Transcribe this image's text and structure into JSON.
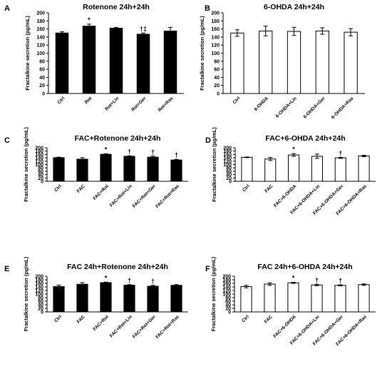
{
  "chart_data": [
    {
      "letter": "A",
      "title": "Rotenone 24h+24h",
      "type": "bar",
      "ylabel": "Fractalkine secretion (pg/mL)",
      "ylim": [
        0,
        200
      ],
      "yticks": [
        "0",
        "20",
        "40",
        "60",
        "80",
        "100",
        "120",
        "140",
        "160",
        "180",
        "200"
      ],
      "fill": "#000000",
      "categories": [
        "Ctrl",
        "Rot",
        "Rot+Lin",
        "Rot+Ger",
        "Rot+Ras"
      ],
      "values": [
        150,
        167,
        162,
        147,
        155
      ],
      "errors": [
        3,
        5,
        2,
        3,
        9
      ],
      "annotations": [
        "",
        "*",
        "",
        "†‡",
        ""
      ]
    },
    {
      "letter": "B",
      "title": "6-OHDA 24h+24h",
      "type": "bar",
      "ylabel": "Fractalkine secretion (pg/mL)",
      "ylim": [
        0,
        200
      ],
      "yticks": [
        "0",
        "20",
        "40",
        "60",
        "80",
        "100",
        "120",
        "140",
        "160",
        "180",
        "200"
      ],
      "fill": "#ffffff",
      "categories": [
        "Ctrl",
        "6-OHDA",
        "6-OHDA+Lin",
        "6-OHDA+Ger",
        "6-OHDA+Ras"
      ],
      "values": [
        150,
        155,
        154,
        155,
        152
      ],
      "errors": [
        8,
        12,
        10,
        8,
        9
      ],
      "annotations": [
        "",
        "",
        "",
        "",
        ""
      ]
    },
    {
      "letter": "C",
      "title": "FAC+Rotenone 24h+24h",
      "type": "bar",
      "ylabel": "Fractalkine secretion (pg/mL)",
      "ylim": [
        0,
        200
      ],
      "yticks": [
        "0",
        "20",
        "40",
        "60",
        "80",
        "100",
        "120",
        "140",
        "160",
        "180",
        "200"
      ],
      "fill": "#000000",
      "categories": [
        "Ctrl",
        "FAC",
        "FAC+Rot",
        "FAC+Rot+Lin",
        "FAC+Rot+Ger",
        "FAC+Rot+Ras"
      ],
      "values": [
        141,
        132,
        161,
        149,
        144,
        127
      ],
      "errors": [
        3,
        9,
        3,
        3,
        6,
        4
      ],
      "annotations": [
        "",
        "",
        "*",
        "†",
        "†",
        "†"
      ]
    },
    {
      "letter": "D",
      "title": "FAC+6-OHDA 24h+24h",
      "type": "bar",
      "ylabel": "Fractalkine secretion (pg/mL)",
      "ylim": [
        0,
        200
      ],
      "yticks": [
        "0",
        "20",
        "40",
        "60",
        "80",
        "100",
        "120",
        "140",
        "160",
        "180",
        "200"
      ],
      "fill": "#ffffff",
      "categories": [
        "Ctrl",
        "FAC",
        "FAC+6-OHDA",
        "FAC+6-OHDA+Lin",
        "FAC+6-OHDA+Ger",
        "FAC+6-OHDA+Ras"
      ],
      "values": [
        143,
        133,
        157,
        149,
        140,
        151
      ],
      "errors": [
        2,
        9,
        8,
        13,
        3,
        4
      ],
      "annotations": [
        "",
        "",
        "*",
        "",
        "†",
        ""
      ]
    },
    {
      "letter": "E",
      "title": "FAC 24h+Rotenone 24h+24h",
      "type": "bar",
      "ylabel": "Fractalkine secretion (pg/mL)",
      "ylim": [
        0,
        200
      ],
      "yticks": [
        "0",
        "20",
        "40",
        "60",
        "80",
        "100",
        "120",
        "140",
        "160",
        "180",
        "200"
      ],
      "fill": "#000000",
      "categories": [
        "Ctrl",
        "FAC",
        "FAC+Rot",
        "FAC+Rot+Lin",
        "FAC+Rot+Ger",
        "FAC+Rot+Ras"
      ],
      "values": [
        142,
        155,
        164,
        150,
        144,
        149
      ],
      "errors": [
        8,
        9,
        3,
        3,
        5,
        4
      ],
      "annotations": [
        "",
        "",
        "*",
        "†",
        "†",
        ""
      ]
    },
    {
      "letter": "F",
      "title": "FAC 24h+6-OHDA 24h+24h",
      "type": "bar",
      "ylabel": "Fractalkine secretion (pg/mL)",
      "ylim": [
        0,
        200
      ],
      "yticks": [
        "0",
        "20",
        "40",
        "60",
        "80",
        "100",
        "120",
        "140",
        "160",
        "180",
        "200"
      ],
      "fill": "#ffffff",
      "categories": [
        "Ctrl",
        "FAC",
        "FAC+6-OHDA",
        "FAC+6-OHDA+Lin",
        "FAC+6-OHDA+Ger",
        "FAC+6-OHDA+Ras"
      ],
      "values": [
        142,
        156,
        163,
        151,
        149,
        153
      ],
      "errors": [
        7,
        7,
        3,
        4,
        3,
        4
      ],
      "annotations": [
        "",
        "",
        "*",
        "†",
        "†",
        ""
      ]
    }
  ]
}
